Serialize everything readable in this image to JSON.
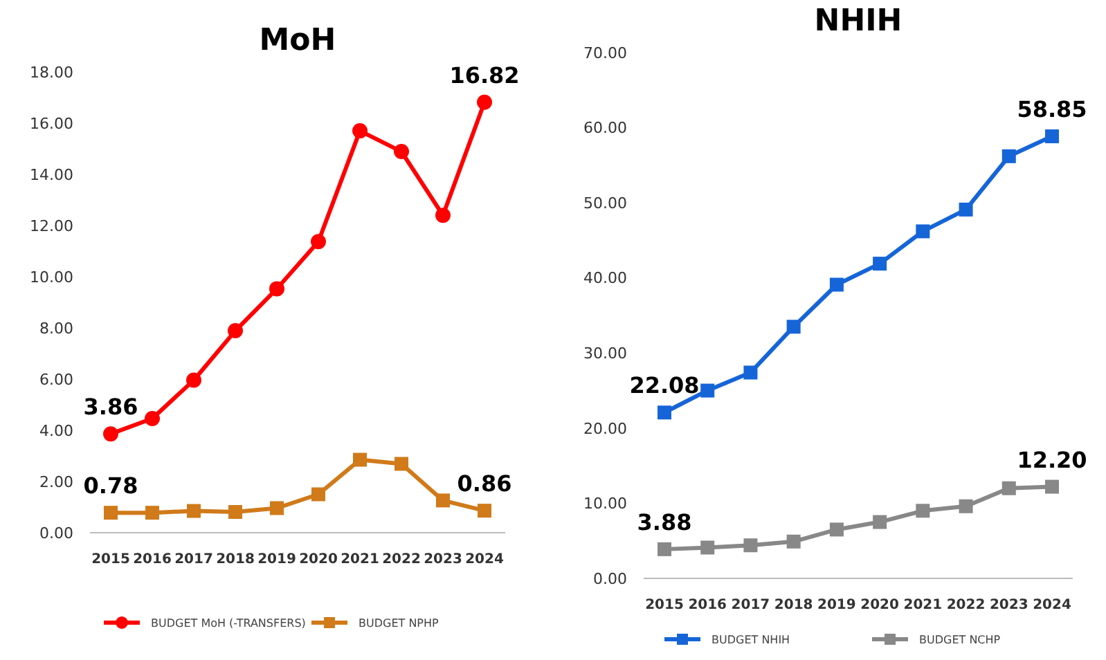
{
  "chart_data": [
    {
      "type": "line",
      "title": "MoH",
      "categories": [
        "2015",
        "2016",
        "2017",
        "2018",
        "2019",
        "2020",
        "2021",
        "2022",
        "2023",
        "2024"
      ],
      "series": [
        {
          "name": "BUDGET MoH  (-TRANSFERS)",
          "color": "#ff0000",
          "marker": "circle",
          "values": [
            3.86,
            4.46,
            5.96,
            7.89,
            9.53,
            11.37,
            15.7,
            14.89,
            12.4,
            16.82
          ],
          "value_labels": [
            "3.86",
            null,
            null,
            null,
            null,
            null,
            null,
            null,
            null,
            "16.82"
          ]
        },
        {
          "name": "BUDGET NPHP",
          "color": "#d07a1a",
          "marker": "square",
          "values": [
            0.78,
            0.78,
            0.85,
            0.81,
            0.96,
            1.5,
            2.85,
            2.69,
            1.26,
            0.86
          ],
          "value_labels": [
            "0.78",
            null,
            null,
            null,
            null,
            null,
            null,
            null,
            null,
            "0.86"
          ]
        }
      ],
      "ylim": [
        0,
        18
      ],
      "yticks": [
        {
          "value": 0,
          "label": "0.00"
        },
        {
          "value": 2,
          "label": "2.00"
        },
        {
          "value": 4,
          "label": "4.00"
        },
        {
          "value": 6,
          "label": "6.00"
        },
        {
          "value": 8,
          "label": "8.00"
        },
        {
          "value": 10,
          "label": "10.00"
        },
        {
          "value": 12,
          "label": "12.00"
        },
        {
          "value": 14,
          "label": "14.00"
        },
        {
          "value": 16,
          "label": "16.00"
        },
        {
          "value": 18,
          "label": "18.00"
        }
      ],
      "grid": false,
      "legend": "bottom"
    },
    {
      "type": "line",
      "title": "NHIH",
      "categories": [
        "2015",
        "2016",
        "2017",
        "2018",
        "2019",
        "2020",
        "2021",
        "2022",
        "2023",
        "2024"
      ],
      "series": [
        {
          "name": "BUDGET NHIH",
          "color": "#1565d8",
          "marker": "square",
          "values": [
            22.08,
            25.0,
            27.4,
            33.5,
            39.1,
            41.9,
            46.2,
            49.1,
            56.2,
            58.85
          ],
          "value_labels": [
            "22.08",
            null,
            null,
            null,
            null,
            null,
            null,
            null,
            null,
            "58.85"
          ]
        },
        {
          "name": "BUDGET NCHP",
          "color": "#888888",
          "marker": "square",
          "values": [
            3.88,
            4.1,
            4.4,
            4.9,
            6.5,
            7.5,
            9.0,
            9.6,
            12.0,
            12.2
          ],
          "value_labels": [
            "3.88",
            null,
            null,
            null,
            null,
            null,
            null,
            null,
            null,
            "12.20"
          ]
        }
      ],
      "ylim": [
        0,
        70
      ],
      "yticks": [
        {
          "value": 0,
          "label": "0.00"
        },
        {
          "value": 10,
          "label": "10.00"
        },
        {
          "value": 20,
          "label": "20.00"
        },
        {
          "value": 30,
          "label": "30.00"
        },
        {
          "value": 40,
          "label": "40.00"
        },
        {
          "value": 50,
          "label": "50.00"
        },
        {
          "value": 60,
          "label": "60.00"
        },
        {
          "value": 70,
          "label": "70.00"
        }
      ],
      "grid": false,
      "legend": "bottom"
    }
  ]
}
